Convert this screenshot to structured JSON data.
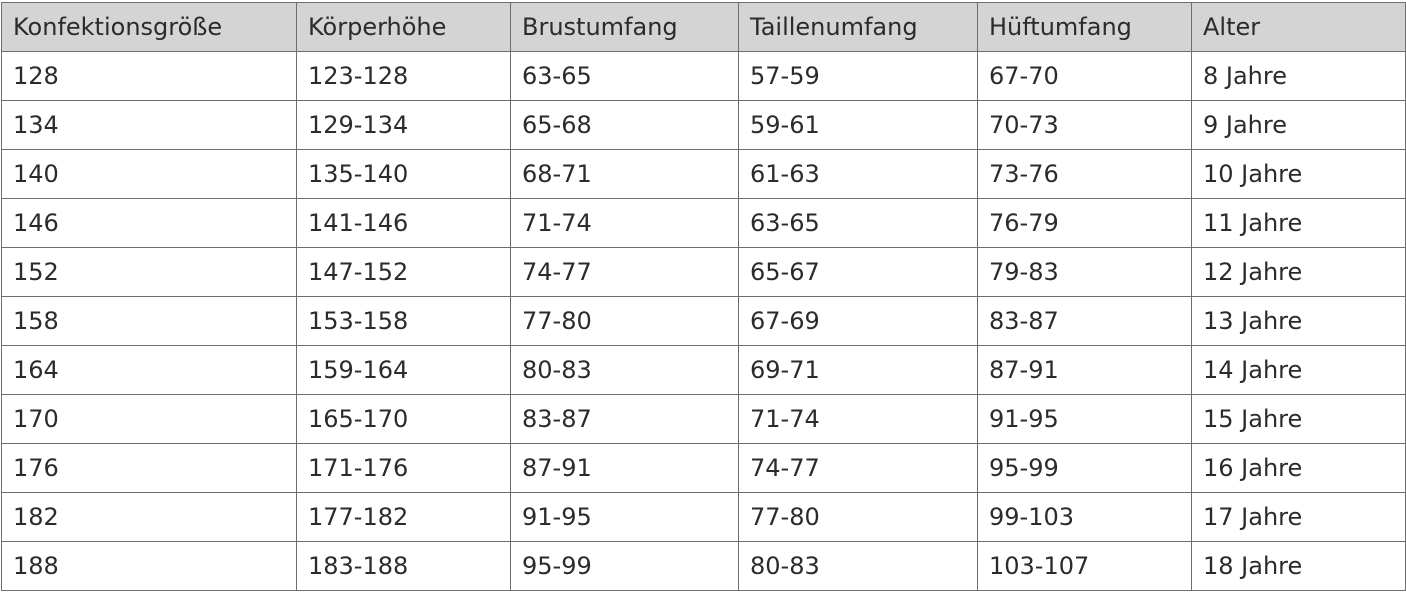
{
  "table": {
    "headers": [
      "Konfektionsgröße",
      "Körperhöhe",
      "Brustumfang",
      "Taillenumfang",
      "Hüftumfang",
      "Alter"
    ],
    "rows": [
      [
        "128",
        "123-128",
        "63-65",
        "57-59",
        "67-70",
        "8 Jahre"
      ],
      [
        "134",
        "129-134",
        "65-68",
        "59-61",
        "70-73",
        "9 Jahre"
      ],
      [
        "140",
        "135-140",
        "68-71",
        "61-63",
        "73-76",
        "10 Jahre"
      ],
      [
        "146",
        "141-146",
        "71-74",
        "63-65",
        "76-79",
        "11 Jahre"
      ],
      [
        "152",
        "147-152",
        "74-77",
        "65-67",
        "79-83",
        "12 Jahre"
      ],
      [
        "158",
        "153-158",
        "77-80",
        "67-69",
        "83-87",
        "13 Jahre"
      ],
      [
        "164",
        "159-164",
        "80-83",
        "69-71",
        "87-91",
        "14 Jahre"
      ],
      [
        "170",
        "165-170",
        "83-87",
        "71-74",
        "91-95",
        "15 Jahre"
      ],
      [
        "176",
        "171-176",
        "87-91",
        "74-77",
        "95-99",
        "16 Jahre"
      ],
      [
        "182",
        "177-182",
        "91-95",
        "77-80",
        "99-103",
        "17 Jahre"
      ],
      [
        "188",
        "183-188",
        "95-99",
        "80-83",
        "103-107",
        "18 Jahre"
      ]
    ]
  },
  "colors": {
    "header_bg": "#d4d4d4",
    "border": "#6e6e6e",
    "text": "#2b2b2b"
  }
}
